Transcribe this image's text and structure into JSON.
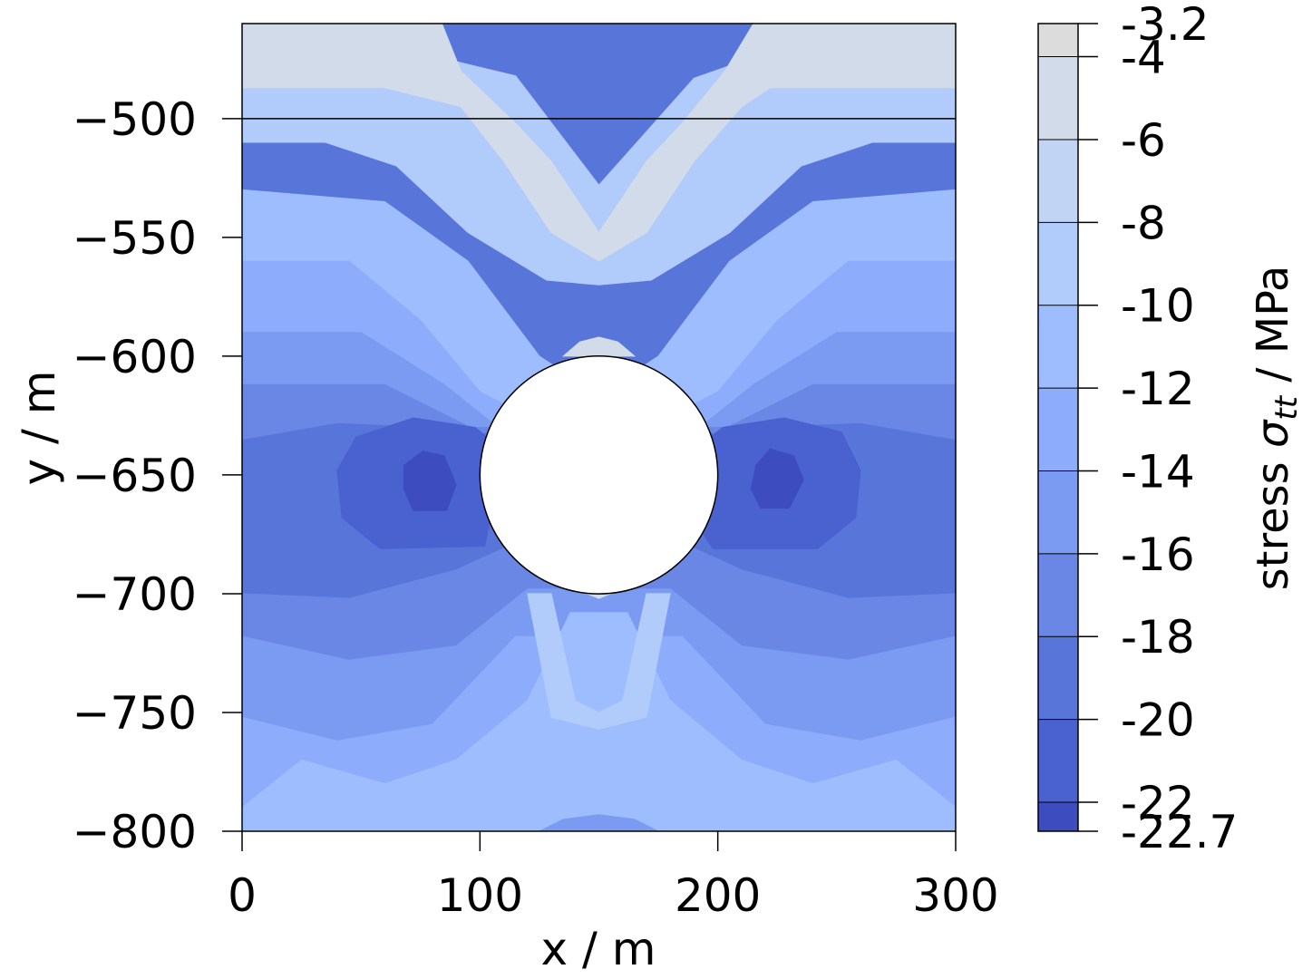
{
  "chart_data": {
    "type": "heatmap",
    "title": "",
    "xlabel": "x / m",
    "ylabel": "y / m",
    "xlim": [
      0,
      300
    ],
    "ylim": [
      -800,
      -460
    ],
    "x_ticks": [
      0,
      100,
      200,
      300
    ],
    "x_tick_labels": [
      "0",
      "100",
      "200",
      "300"
    ],
    "y_ticks": [
      -500,
      -550,
      -600,
      -650,
      -700,
      -750,
      -800
    ],
    "y_tick_labels": [
      "−500",
      "−550",
      "−600",
      "−650",
      "−700",
      "−750",
      "−800"
    ],
    "horizontal_line_y": -500,
    "cavity": {
      "center": [
        150,
        -650
      ],
      "radius": 50
    },
    "colorbar": {
      "label_prefix": "stress ",
      "label_symbol": "σ",
      "label_subscript": "tt",
      "label_suffix": " / MPa",
      "ticks": [
        -3.2,
        -4,
        -6,
        -8,
        -10,
        -12,
        -14,
        -16,
        -18,
        -20,
        -22,
        -22.7
      ],
      "tick_labels": [
        "-3.2",
        "-4",
        "-6",
        "-8",
        "-10",
        "-12",
        "-14",
        "-16",
        "-18",
        "-20",
        "-22",
        "-22.7"
      ],
      "band_colors": [
        "#dcdcdc",
        "#d2dbe9",
        "#c2d4f4",
        "#b1cbfa",
        "#9ebdfe",
        "#8dacfb",
        "#7b9bf2",
        "#6a87e6",
        "#5875da",
        "#4a61d0",
        "#3d4dc0"
      ]
    },
    "contour_regions": [
      {
        "level": -9,
        "points": [
          [
            0,
            -480
          ],
          [
            90,
            -476
          ],
          [
            115,
            -482
          ],
          [
            150,
            -528
          ],
          [
            190,
            -483
          ],
          [
            210,
            -476
          ],
          [
            300,
            -480
          ],
          [
            300,
            -510
          ],
          [
            300,
            -510
          ],
          [
            265,
            -510
          ],
          [
            235,
            -520
          ],
          [
            205,
            -548
          ],
          [
            172,
            -568
          ],
          [
            150,
            -570
          ],
          [
            128,
            -568
          ],
          [
            95,
            -548
          ],
          [
            65,
            -520
          ],
          [
            35,
            -510
          ],
          [
            0,
            -510
          ]
        ]
      },
      {
        "level": -6,
        "points": [
          [
            0,
            -460
          ],
          [
            84,
            -460
          ],
          [
            92,
            -480
          ],
          [
            115,
            -502
          ],
          [
            130,
            -518
          ],
          [
            150,
            -548
          ],
          [
            170,
            -518
          ],
          [
            185,
            -502
          ],
          [
            203,
            -480
          ],
          [
            215,
            -460
          ],
          [
            300,
            -460
          ],
          [
            300,
            -487
          ],
          [
            265,
            -487
          ],
          [
            222,
            -487
          ],
          [
            210,
            -495
          ],
          [
            190,
            -518
          ],
          [
            170,
            -548
          ],
          [
            150,
            -560
          ],
          [
            130,
            -548
          ],
          [
            110,
            -518
          ],
          [
            92,
            -495
          ],
          [
            60,
            -487
          ],
          [
            0,
            -487
          ]
        ]
      },
      {
        "level": -11,
        "points": [
          [
            0,
            -530
          ],
          [
            60,
            -535
          ],
          [
            95,
            -560
          ],
          [
            125,
            -600
          ],
          [
            140,
            -610
          ],
          [
            150,
            -612
          ],
          [
            160,
            -610
          ],
          [
            175,
            -600
          ],
          [
            205,
            -560
          ],
          [
            240,
            -535
          ],
          [
            300,
            -530
          ],
          [
            300,
            -560
          ],
          [
            255,
            -560
          ],
          [
            225,
            -585
          ],
          [
            200,
            -615
          ],
          [
            175,
            -628
          ],
          [
            125,
            -628
          ],
          [
            100,
            -615
          ],
          [
            75,
            -585
          ],
          [
            45,
            -560
          ],
          [
            0,
            -560
          ]
        ]
      },
      {
        "level": -13,
        "points": [
          [
            0,
            -560
          ],
          [
            45,
            -560
          ],
          [
            75,
            -585
          ],
          [
            100,
            -615
          ],
          [
            125,
            -628
          ],
          [
            175,
            -628
          ],
          [
            200,
            -615
          ],
          [
            225,
            -585
          ],
          [
            255,
            -560
          ],
          [
            300,
            -560
          ],
          [
            300,
            -590
          ],
          [
            250,
            -590
          ],
          [
            215,
            -612
          ],
          [
            185,
            -636
          ],
          [
            115,
            -636
          ],
          [
            85,
            -612
          ],
          [
            50,
            -590
          ],
          [
            0,
            -590
          ]
        ]
      },
      {
        "level": -15,
        "points": [
          [
            0,
            -590
          ],
          [
            50,
            -590
          ],
          [
            85,
            -612
          ],
          [
            115,
            -636
          ],
          [
            185,
            -636
          ],
          [
            215,
            -612
          ],
          [
            250,
            -590
          ],
          [
            300,
            -590
          ],
          [
            300,
            -612
          ],
          [
            240,
            -612
          ],
          [
            200,
            -632
          ],
          [
            100,
            -632
          ],
          [
            60,
            -612
          ],
          [
            0,
            -612
          ]
        ]
      },
      {
        "level": -17,
        "points": [
          [
            0,
            -612
          ],
          [
            60,
            -612
          ],
          [
            100,
            -632
          ],
          [
            200,
            -632
          ],
          [
            240,
            -612
          ],
          [
            300,
            -612
          ],
          [
            300,
            -635
          ],
          [
            260,
            -628
          ],
          [
            210,
            -630
          ],
          [
            90,
            -630
          ],
          [
            40,
            -628
          ],
          [
            0,
            -635
          ]
        ]
      },
      {
        "level": -21,
        "points": [
          [
            40,
            -648
          ],
          [
            48,
            -634
          ],
          [
            72,
            -626
          ],
          [
            98,
            -630
          ],
          [
            110,
            -640
          ],
          [
            102,
            -680
          ],
          [
            58,
            -681
          ],
          [
            42,
            -668
          ]
        ]
      },
      {
        "level": -21,
        "points": [
          [
            190,
            -640
          ],
          [
            202,
            -630
          ],
          [
            228,
            -626
          ],
          [
            252,
            -632
          ],
          [
            260,
            -648
          ],
          [
            258,
            -668
          ],
          [
            242,
            -681
          ],
          [
            198,
            -681
          ],
          [
            192,
            -672
          ]
        ]
      },
      {
        "level": -22.5,
        "points": [
          [
            68,
            -646
          ],
          [
            76,
            -640
          ],
          [
            85,
            -642
          ],
          [
            90,
            -654
          ],
          [
            86,
            -665
          ],
          [
            72,
            -665
          ],
          [
            68,
            -656
          ]
        ]
      },
      {
        "level": -22.5,
        "points": [
          [
            216,
            -646
          ],
          [
            222,
            -639
          ],
          [
            232,
            -642
          ],
          [
            236,
            -652
          ],
          [
            230,
            -664
          ],
          [
            218,
            -664
          ],
          [
            214,
            -656
          ]
        ]
      },
      {
        "level": -17,
        "points": [
          [
            0,
            -700
          ],
          [
            45,
            -702
          ],
          [
            90,
            -690
          ],
          [
            112,
            -680
          ],
          [
            188,
            -680
          ],
          [
            210,
            -690
          ],
          [
            255,
            -702
          ],
          [
            300,
            -700
          ],
          [
            300,
            -718
          ],
          [
            255,
            -728
          ],
          [
            210,
            -722
          ],
          [
            180,
            -698
          ],
          [
            120,
            -698
          ],
          [
            90,
            -722
          ],
          [
            45,
            -728
          ],
          [
            0,
            -718
          ]
        ]
      },
      {
        "level": -15,
        "points": [
          [
            0,
            -718
          ],
          [
            45,
            -728
          ],
          [
            90,
            -722
          ],
          [
            120,
            -698
          ],
          [
            180,
            -698
          ],
          [
            210,
            -722
          ],
          [
            255,
            -728
          ],
          [
            300,
            -718
          ],
          [
            300,
            -752
          ],
          [
            260,
            -762
          ],
          [
            220,
            -755
          ],
          [
            185,
            -718
          ],
          [
            115,
            -718
          ],
          [
            80,
            -755
          ],
          [
            40,
            -762
          ],
          [
            0,
            -752
          ]
        ]
      },
      {
        "level": -13,
        "points": [
          [
            0,
            -752
          ],
          [
            40,
            -762
          ],
          [
            80,
            -755
          ],
          [
            115,
            -718
          ],
          [
            185,
            -718
          ],
          [
            220,
            -755
          ],
          [
            260,
            -762
          ],
          [
            300,
            -752
          ],
          [
            300,
            -800
          ],
          [
            0,
            -800
          ]
        ]
      },
      {
        "level": -11,
        "points": [
          [
            0,
            -800
          ],
          [
            0,
            -790
          ],
          [
            25,
            -770
          ],
          [
            60,
            -780
          ],
          [
            90,
            -770
          ],
          [
            120,
            -745
          ],
          [
            138,
            -708
          ],
          [
            162,
            -708
          ],
          [
            180,
            -745
          ],
          [
            210,
            -770
          ],
          [
            240,
            -780
          ],
          [
            275,
            -770
          ],
          [
            300,
            -790
          ],
          [
            300,
            -800
          ]
        ]
      },
      {
        "level": -9,
        "points": [
          [
            120,
            -700
          ],
          [
            130,
            -700
          ],
          [
            140,
            -745
          ],
          [
            150,
            -750
          ],
          [
            160,
            -745
          ],
          [
            170,
            -700
          ],
          [
            180,
            -700
          ],
          [
            170,
            -752
          ],
          [
            150,
            -757
          ],
          [
            130,
            -752
          ]
        ]
      },
      {
        "level": -15,
        "points": [
          [
            125,
            -800
          ],
          [
            135,
            -795
          ],
          [
            150,
            -793
          ],
          [
            165,
            -795
          ],
          [
            175,
            -800
          ]
        ]
      },
      {
        "level": -5,
        "points": [
          [
            135,
            -600
          ],
          [
            142,
            -594
          ],
          [
            150,
            -592
          ],
          [
            158,
            -594
          ],
          [
            165,
            -600
          ]
        ]
      },
      {
        "level": -5,
        "points": [
          [
            140,
            -698
          ],
          [
            150,
            -700
          ],
          [
            160,
            -698
          ],
          [
            150,
            -702
          ]
        ]
      }
    ]
  }
}
